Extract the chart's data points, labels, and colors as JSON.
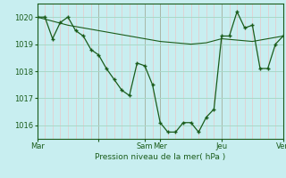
{
  "background_color": "#c8eef0",
  "grid_color_h": "#a8d8c8",
  "grid_color_v_minor": "#e8c8c8",
  "grid_color_v_major": "#a8b8a8",
  "line_color": "#1a5c1a",
  "ylabel": "Pression niveau de la mer( hPa )",
  "ylim": [
    1015.5,
    1020.5
  ],
  "yticks": [
    1016,
    1017,
    1018,
    1019,
    1020
  ],
  "xlim": [
    0,
    96
  ],
  "xtick_positions": [
    0,
    24,
    42,
    48,
    72,
    96
  ],
  "xtick_labels": [
    "Mar",
    "",
    "Sam",
    "Mer",
    "Jeu",
    "Ven"
  ],
  "series1_x": [
    0,
    3,
    6,
    9,
    12,
    15,
    18,
    21,
    24,
    27,
    30,
    33,
    36,
    39,
    42,
    45,
    48,
    51,
    54,
    57,
    60,
    63,
    66,
    69,
    72,
    75,
    78,
    81,
    84,
    87,
    90,
    93,
    96
  ],
  "series1_y": [
    1020.0,
    1020.0,
    1019.2,
    1019.8,
    1020.0,
    1019.5,
    1019.3,
    1018.8,
    1018.6,
    1018.1,
    1017.7,
    1017.3,
    1017.1,
    1018.3,
    1018.2,
    1017.5,
    1016.1,
    1015.75,
    1015.75,
    1016.1,
    1016.1,
    1015.75,
    1016.3,
    1016.6,
    1019.3,
    1019.3,
    1020.2,
    1019.6,
    1019.7,
    1018.1,
    1018.1,
    1019.0,
    1019.3
  ],
  "series2_x": [
    0,
    6,
    12,
    18,
    24,
    30,
    36,
    42,
    48,
    54,
    60,
    66,
    72,
    78,
    84,
    90,
    96
  ],
  "series2_y": [
    1020.0,
    1019.85,
    1019.7,
    1019.6,
    1019.5,
    1019.4,
    1019.3,
    1019.2,
    1019.1,
    1019.05,
    1019.0,
    1019.05,
    1019.2,
    1019.15,
    1019.1,
    1019.2,
    1019.3
  ]
}
